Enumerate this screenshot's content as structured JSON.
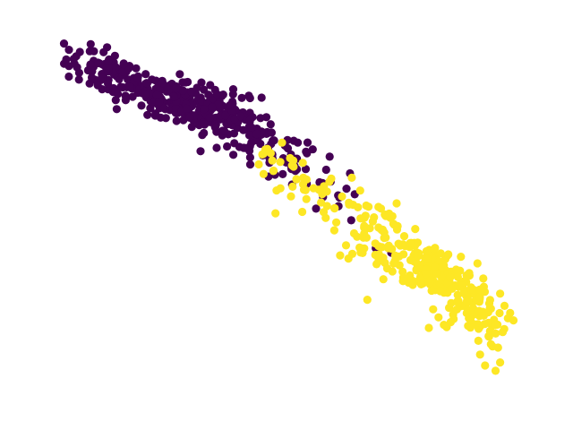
{
  "chart_data": {
    "type": "scatter",
    "title": "",
    "xlabel": "",
    "ylabel": "",
    "grid": false,
    "axes_visible": false,
    "xlim": [
      0,
      100
    ],
    "ylim": [
      0,
      100
    ],
    "colors": {
      "class_0": "#440154",
      "class_1": "#fde725"
    },
    "series": [
      {
        "class_id": 0,
        "color": "#440154",
        "clusters": [
          {
            "cx": 18.0,
            "cy": 85.0,
            "sx": 6.0,
            "sy": 3.0,
            "n": 120
          },
          {
            "cx": 29.0,
            "cy": 80.5,
            "sx": 5.0,
            "sy": 3.0,
            "n": 130
          },
          {
            "cx": 38.0,
            "cy": 76.0,
            "sx": 5.0,
            "sy": 3.5,
            "n": 110
          },
          {
            "cx": 47.0,
            "cy": 67.0,
            "sx": 4.5,
            "sy": 4.0,
            "n": 45
          },
          {
            "cx": 57.0,
            "cy": 58.0,
            "sx": 4.0,
            "sy": 4.0,
            "n": 18
          }
        ],
        "points": [
          {
            "x": 6.6,
            "y": 93.9
          },
          {
            "x": 6.6,
            "y": 89.6
          },
          {
            "x": 10.9,
            "y": 90.0
          },
          {
            "x": 14.5,
            "y": 91.0
          },
          {
            "x": 67.8,
            "y": 41.2
          },
          {
            "x": 70.9,
            "y": 40.0
          },
          {
            "x": 58.6,
            "y": 65.5
          },
          {
            "x": 39.4,
            "y": 66.0
          },
          {
            "x": 55.9,
            "y": 51.7
          },
          {
            "x": 63.6,
            "y": 55.5
          }
        ]
      },
      {
        "class_id": 1,
        "color": "#fde725",
        "clusters": [
          {
            "cx": 48.0,
            "cy": 62.5,
            "sx": 3.5,
            "sy": 3.0,
            "n": 18
          },
          {
            "cx": 58.0,
            "cy": 55.0,
            "sx": 4.5,
            "sy": 4.0,
            "n": 30
          },
          {
            "cx": 69.0,
            "cy": 44.0,
            "sx": 5.0,
            "sy": 4.5,
            "n": 90
          },
          {
            "cx": 80.0,
            "cy": 34.5,
            "sx": 4.0,
            "sy": 3.5,
            "n": 150
          },
          {
            "cx": 87.0,
            "cy": 25.0,
            "sx": 3.5,
            "sy": 4.0,
            "n": 85
          }
        ],
        "points": [
          {
            "x": 78.4,
            "y": 20.0
          },
          {
            "x": 81.4,
            "y": 20.8
          },
          {
            "x": 88.6,
            "y": 12.9
          },
          {
            "x": 92.6,
            "y": 10.8
          },
          {
            "x": 91.7,
            "y": 8.6
          },
          {
            "x": 89.6,
            "y": 10.0
          }
        ]
      }
    ]
  }
}
